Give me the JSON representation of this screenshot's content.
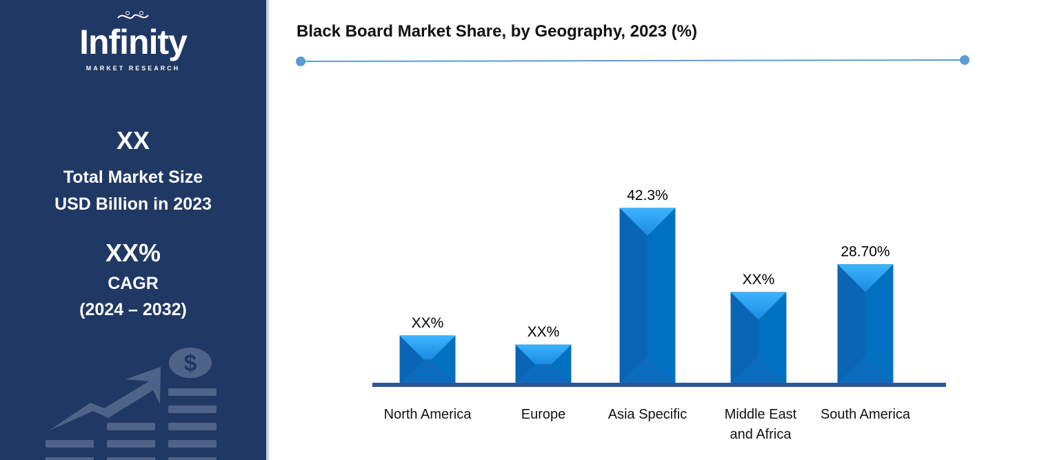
{
  "sidebar": {
    "logo_text": "Infinity",
    "logo_subtext": "MARKET RESEARCH",
    "market_size_value": "XX",
    "market_size_label_1": "Total Market Size",
    "market_size_label_2": "USD Billion in 2023",
    "cagr_value": "XX%",
    "cagr_label": "CAGR",
    "cagr_period": "(2024 – 2032)",
    "background_color": "#203864"
  },
  "chart_data": {
    "type": "bar",
    "title": "Black Board Market Share, by Geography, 2023 (%)",
    "categories": [
      "North America",
      "Europe",
      "Asia Specific",
      "Middle East and Africa",
      "South America"
    ],
    "category_lines": [
      [
        "North America"
      ],
      [
        "Europe"
      ],
      [
        "Asia Specific"
      ],
      [
        "Middle East",
        "and Africa"
      ],
      [
        "South America"
      ]
    ],
    "values": [
      11.5,
      9.3,
      42.3,
      22,
      28.7
    ],
    "data_labels": [
      "XX%",
      "XX%",
      "42.3%",
      "XX%",
      "28.70%"
    ],
    "ylim": [
      0,
      45
    ],
    "grid": false,
    "bar_color": "#0070c0",
    "axis_color": "#2f5597"
  }
}
